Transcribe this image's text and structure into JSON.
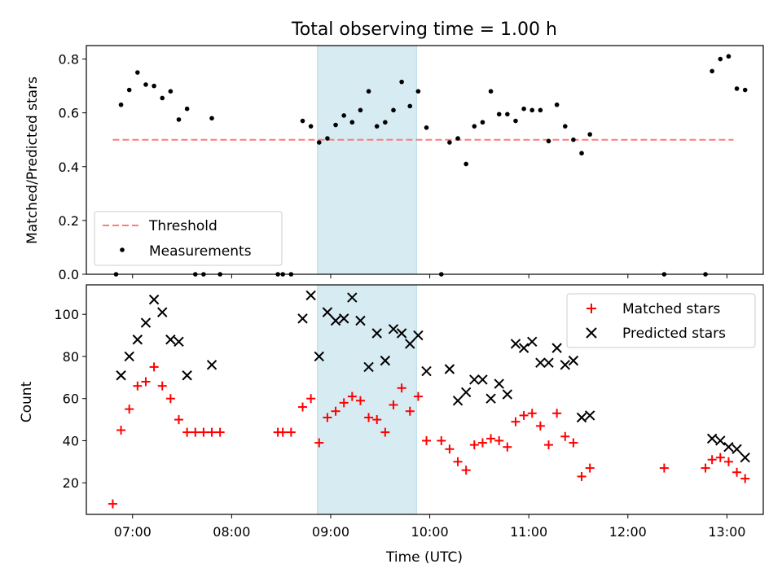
{
  "chart_data": [
    {
      "type": "scatter",
      "title": "Total observing time = 1.00 h",
      "ylabel": "Matched/Predicted stars",
      "xlabel": "",
      "x_unit": "time_utc",
      "xlim": [
        "06:32",
        "13:22"
      ],
      "ylim": [
        0,
        0.85
      ],
      "yticks": [
        "0.0",
        "0.2",
        "0.4",
        "0.6",
        "0.8"
      ],
      "highlight_span": [
        "08:52",
        "09:52"
      ],
      "threshold": {
        "name": "Threshold",
        "value": 0.5,
        "x_range": [
          "06:48",
          "13:04"
        ],
        "color": "#ff7a7a"
      },
      "legend_position": "lower-left",
      "series": [
        {
          "name": "Measurements",
          "color": "#000000",
          "points": [
            [
              "06:50",
              0.0
            ],
            [
              "06:53",
              0.63
            ],
            [
              "06:58",
              0.685
            ],
            [
              "07:03",
              0.75
            ],
            [
              "07:08",
              0.705
            ],
            [
              "07:13",
              0.7
            ],
            [
              "07:18",
              0.655
            ],
            [
              "07:23",
              0.68
            ],
            [
              "07:28",
              0.575
            ],
            [
              "07:33",
              0.615
            ],
            [
              "07:38",
              0.0
            ],
            [
              "07:43",
              0.0
            ],
            [
              "07:48",
              0.58
            ],
            [
              "07:53",
              0.0
            ],
            [
              "08:28",
              0.0
            ],
            [
              "08:31",
              0.0
            ],
            [
              "08:36",
              0.0
            ],
            [
              "08:43",
              0.57
            ],
            [
              "08:48",
              0.55
            ],
            [
              "08:53",
              0.49
            ],
            [
              "08:58",
              0.505
            ],
            [
              "09:03",
              0.555
            ],
            [
              "09:08",
              0.59
            ],
            [
              "09:13",
              0.565
            ],
            [
              "09:18",
              0.61
            ],
            [
              "09:23",
              0.68
            ],
            [
              "09:28",
              0.55
            ],
            [
              "09:33",
              0.565
            ],
            [
              "09:38",
              0.61
            ],
            [
              "09:43",
              0.715
            ],
            [
              "09:48",
              0.625
            ],
            [
              "09:53",
              0.68
            ],
            [
              "09:58",
              0.545
            ],
            [
              "10:07",
              0.0
            ],
            [
              "10:12",
              0.49
            ],
            [
              "10:17",
              0.505
            ],
            [
              "10:22",
              0.41
            ],
            [
              "10:27",
              0.55
            ],
            [
              "10:32",
              0.565
            ],
            [
              "10:37",
              0.68
            ],
            [
              "10:42",
              0.595
            ],
            [
              "10:47",
              0.595
            ],
            [
              "10:52",
              0.57
            ],
            [
              "10:57",
              0.615
            ],
            [
              "11:02",
              0.61
            ],
            [
              "11:07",
              0.61
            ],
            [
              "11:12",
              0.495
            ],
            [
              "11:17",
              0.63
            ],
            [
              "11:22",
              0.55
            ],
            [
              "11:27",
              0.5
            ],
            [
              "11:32",
              0.45
            ],
            [
              "11:37",
              0.52
            ],
            [
              "12:22",
              0.0
            ],
            [
              "12:47",
              0.0
            ],
            [
              "12:51",
              0.755
            ],
            [
              "12:56",
              0.8
            ],
            [
              "13:01",
              0.81
            ],
            [
              "13:06",
              0.69
            ],
            [
              "13:11",
              0.685
            ]
          ]
        }
      ]
    },
    {
      "type": "scatter",
      "title": "",
      "ylabel": "Count",
      "xlabel": "Time (UTC)",
      "x_unit": "time_utc",
      "xlim": [
        "06:32",
        "13:22"
      ],
      "ylim": [
        5,
        114
      ],
      "yticks": [
        "20",
        "40",
        "60",
        "80",
        "100"
      ],
      "xticks": [
        "07:00",
        "08:00",
        "09:00",
        "10:00",
        "11:00",
        "12:00",
        "13:00"
      ],
      "highlight_span": [
        "08:52",
        "09:52"
      ],
      "legend_position": "upper-right",
      "series": [
        {
          "name": "Matched stars",
          "color": "#ff0000",
          "marker": "plus",
          "points": [
            [
              "06:48",
              10
            ],
            [
              "06:53",
              45
            ],
            [
              "06:58",
              55
            ],
            [
              "07:03",
              66
            ],
            [
              "07:08",
              68
            ],
            [
              "07:13",
              75
            ],
            [
              "07:18",
              66
            ],
            [
              "07:23",
              60
            ],
            [
              "07:28",
              50
            ],
            [
              "07:33",
              44
            ],
            [
              "07:38",
              44
            ],
            [
              "07:43",
              44
            ],
            [
              "07:48",
              44
            ],
            [
              "07:53",
              44
            ],
            [
              "08:28",
              44
            ],
            [
              "08:31",
              44
            ],
            [
              "08:36",
              44
            ],
            [
              "08:43",
              56
            ],
            [
              "08:48",
              60
            ],
            [
              "08:53",
              39
            ],
            [
              "08:58",
              51
            ],
            [
              "09:03",
              54
            ],
            [
              "09:08",
              58
            ],
            [
              "09:13",
              61
            ],
            [
              "09:18",
              59
            ],
            [
              "09:23",
              51
            ],
            [
              "09:28",
              50
            ],
            [
              "09:33",
              44
            ],
            [
              "09:38",
              57
            ],
            [
              "09:43",
              65
            ],
            [
              "09:48",
              54
            ],
            [
              "09:53",
              61
            ],
            [
              "09:58",
              40
            ],
            [
              "10:07",
              40
            ],
            [
              "10:12",
              36
            ],
            [
              "10:17",
              30
            ],
            [
              "10:22",
              26
            ],
            [
              "10:27",
              38
            ],
            [
              "10:32",
              39
            ],
            [
              "10:37",
              41
            ],
            [
              "10:42",
              40
            ],
            [
              "10:47",
              37
            ],
            [
              "10:52",
              49
            ],
            [
              "10:57",
              52
            ],
            [
              "11:02",
              53
            ],
            [
              "11:07",
              47
            ],
            [
              "11:12",
              38
            ],
            [
              "11:17",
              53
            ],
            [
              "11:22",
              42
            ],
            [
              "11:27",
              39
            ],
            [
              "11:32",
              23
            ],
            [
              "11:37",
              27
            ],
            [
              "12:22",
              27
            ],
            [
              "12:47",
              27
            ],
            [
              "12:51",
              31
            ],
            [
              "12:56",
              32
            ],
            [
              "13:01",
              30
            ],
            [
              "13:06",
              25
            ],
            [
              "13:11",
              22
            ]
          ]
        },
        {
          "name": "Predicted stars",
          "color": "#000000",
          "marker": "x",
          "points": [
            [
              "06:53",
              71
            ],
            [
              "06:58",
              80
            ],
            [
              "07:03",
              88
            ],
            [
              "07:08",
              96
            ],
            [
              "07:13",
              107
            ],
            [
              "07:18",
              101
            ],
            [
              "07:23",
              88
            ],
            [
              "07:28",
              87
            ],
            [
              "07:33",
              71
            ],
            [
              "07:48",
              76
            ],
            [
              "08:43",
              98
            ],
            [
              "08:48",
              109
            ],
            [
              "08:53",
              80
            ],
            [
              "08:58",
              101
            ],
            [
              "09:03",
              97
            ],
            [
              "09:08",
              98
            ],
            [
              "09:13",
              108
            ],
            [
              "09:18",
              97
            ],
            [
              "09:23",
              75
            ],
            [
              "09:28",
              91
            ],
            [
              "09:33",
              78
            ],
            [
              "09:38",
              93
            ],
            [
              "09:43",
              91
            ],
            [
              "09:48",
              86
            ],
            [
              "09:53",
              90
            ],
            [
              "09:58",
              73
            ],
            [
              "10:12",
              74
            ],
            [
              "10:17",
              59
            ],
            [
              "10:22",
              63
            ],
            [
              "10:27",
              69
            ],
            [
              "10:32",
              69
            ],
            [
              "10:37",
              60
            ],
            [
              "10:42",
              67
            ],
            [
              "10:47",
              62
            ],
            [
              "10:52",
              86
            ],
            [
              "10:57",
              84
            ],
            [
              "11:02",
              87
            ],
            [
              "11:07",
              77
            ],
            [
              "11:12",
              77
            ],
            [
              "11:17",
              84
            ],
            [
              "11:22",
              76
            ],
            [
              "11:27",
              78
            ],
            [
              "11:32",
              51
            ],
            [
              "11:37",
              52
            ],
            [
              "12:51",
              41
            ],
            [
              "12:56",
              40
            ],
            [
              "13:01",
              37
            ],
            [
              "13:06",
              36
            ],
            [
              "13:11",
              32
            ]
          ]
        }
      ]
    }
  ]
}
